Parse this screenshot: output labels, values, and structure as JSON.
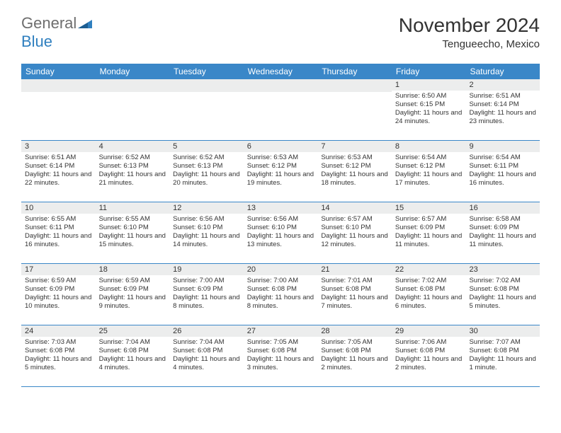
{
  "logo": {
    "text1": "General",
    "text2": "Blue"
  },
  "title": "November 2024",
  "location": "Tengueecho, Mexico",
  "colors": {
    "header_bg": "#3a87c8",
    "header_text": "#ffffff",
    "daynum_bg": "#eceded",
    "text": "#333333",
    "logo_gray": "#6e6e6e",
    "logo_blue": "#2f7fbf",
    "border": "#3a87c8"
  },
  "day_names": [
    "Sunday",
    "Monday",
    "Tuesday",
    "Wednesday",
    "Thursday",
    "Friday",
    "Saturday"
  ],
  "weeks": [
    [
      {
        "empty": true
      },
      {
        "empty": true
      },
      {
        "empty": true
      },
      {
        "empty": true
      },
      {
        "empty": true
      },
      {
        "num": "1",
        "sunrise": "Sunrise: 6:50 AM",
        "sunset": "Sunset: 6:15 PM",
        "daylight": "Daylight: 11 hours and 24 minutes."
      },
      {
        "num": "2",
        "sunrise": "Sunrise: 6:51 AM",
        "sunset": "Sunset: 6:14 PM",
        "daylight": "Daylight: 11 hours and 23 minutes."
      }
    ],
    [
      {
        "num": "3",
        "sunrise": "Sunrise: 6:51 AM",
        "sunset": "Sunset: 6:14 PM",
        "daylight": "Daylight: 11 hours and 22 minutes."
      },
      {
        "num": "4",
        "sunrise": "Sunrise: 6:52 AM",
        "sunset": "Sunset: 6:13 PM",
        "daylight": "Daylight: 11 hours and 21 minutes."
      },
      {
        "num": "5",
        "sunrise": "Sunrise: 6:52 AM",
        "sunset": "Sunset: 6:13 PM",
        "daylight": "Daylight: 11 hours and 20 minutes."
      },
      {
        "num": "6",
        "sunrise": "Sunrise: 6:53 AM",
        "sunset": "Sunset: 6:12 PM",
        "daylight": "Daylight: 11 hours and 19 minutes."
      },
      {
        "num": "7",
        "sunrise": "Sunrise: 6:53 AM",
        "sunset": "Sunset: 6:12 PM",
        "daylight": "Daylight: 11 hours and 18 minutes."
      },
      {
        "num": "8",
        "sunrise": "Sunrise: 6:54 AM",
        "sunset": "Sunset: 6:12 PM",
        "daylight": "Daylight: 11 hours and 17 minutes."
      },
      {
        "num": "9",
        "sunrise": "Sunrise: 6:54 AM",
        "sunset": "Sunset: 6:11 PM",
        "daylight": "Daylight: 11 hours and 16 minutes."
      }
    ],
    [
      {
        "num": "10",
        "sunrise": "Sunrise: 6:55 AM",
        "sunset": "Sunset: 6:11 PM",
        "daylight": "Daylight: 11 hours and 16 minutes."
      },
      {
        "num": "11",
        "sunrise": "Sunrise: 6:55 AM",
        "sunset": "Sunset: 6:10 PM",
        "daylight": "Daylight: 11 hours and 15 minutes."
      },
      {
        "num": "12",
        "sunrise": "Sunrise: 6:56 AM",
        "sunset": "Sunset: 6:10 PM",
        "daylight": "Daylight: 11 hours and 14 minutes."
      },
      {
        "num": "13",
        "sunrise": "Sunrise: 6:56 AM",
        "sunset": "Sunset: 6:10 PM",
        "daylight": "Daylight: 11 hours and 13 minutes."
      },
      {
        "num": "14",
        "sunrise": "Sunrise: 6:57 AM",
        "sunset": "Sunset: 6:10 PM",
        "daylight": "Daylight: 11 hours and 12 minutes."
      },
      {
        "num": "15",
        "sunrise": "Sunrise: 6:57 AM",
        "sunset": "Sunset: 6:09 PM",
        "daylight": "Daylight: 11 hours and 11 minutes."
      },
      {
        "num": "16",
        "sunrise": "Sunrise: 6:58 AM",
        "sunset": "Sunset: 6:09 PM",
        "daylight": "Daylight: 11 hours and 11 minutes."
      }
    ],
    [
      {
        "num": "17",
        "sunrise": "Sunrise: 6:59 AM",
        "sunset": "Sunset: 6:09 PM",
        "daylight": "Daylight: 11 hours and 10 minutes."
      },
      {
        "num": "18",
        "sunrise": "Sunrise: 6:59 AM",
        "sunset": "Sunset: 6:09 PM",
        "daylight": "Daylight: 11 hours and 9 minutes."
      },
      {
        "num": "19",
        "sunrise": "Sunrise: 7:00 AM",
        "sunset": "Sunset: 6:09 PM",
        "daylight": "Daylight: 11 hours and 8 minutes."
      },
      {
        "num": "20",
        "sunrise": "Sunrise: 7:00 AM",
        "sunset": "Sunset: 6:08 PM",
        "daylight": "Daylight: 11 hours and 8 minutes."
      },
      {
        "num": "21",
        "sunrise": "Sunrise: 7:01 AM",
        "sunset": "Sunset: 6:08 PM",
        "daylight": "Daylight: 11 hours and 7 minutes."
      },
      {
        "num": "22",
        "sunrise": "Sunrise: 7:02 AM",
        "sunset": "Sunset: 6:08 PM",
        "daylight": "Daylight: 11 hours and 6 minutes."
      },
      {
        "num": "23",
        "sunrise": "Sunrise: 7:02 AM",
        "sunset": "Sunset: 6:08 PM",
        "daylight": "Daylight: 11 hours and 5 minutes."
      }
    ],
    [
      {
        "num": "24",
        "sunrise": "Sunrise: 7:03 AM",
        "sunset": "Sunset: 6:08 PM",
        "daylight": "Daylight: 11 hours and 5 minutes."
      },
      {
        "num": "25",
        "sunrise": "Sunrise: 7:04 AM",
        "sunset": "Sunset: 6:08 PM",
        "daylight": "Daylight: 11 hours and 4 minutes."
      },
      {
        "num": "26",
        "sunrise": "Sunrise: 7:04 AM",
        "sunset": "Sunset: 6:08 PM",
        "daylight": "Daylight: 11 hours and 4 minutes."
      },
      {
        "num": "27",
        "sunrise": "Sunrise: 7:05 AM",
        "sunset": "Sunset: 6:08 PM",
        "daylight": "Daylight: 11 hours and 3 minutes."
      },
      {
        "num": "28",
        "sunrise": "Sunrise: 7:05 AM",
        "sunset": "Sunset: 6:08 PM",
        "daylight": "Daylight: 11 hours and 2 minutes."
      },
      {
        "num": "29",
        "sunrise": "Sunrise: 7:06 AM",
        "sunset": "Sunset: 6:08 PM",
        "daylight": "Daylight: 11 hours and 2 minutes."
      },
      {
        "num": "30",
        "sunrise": "Sunrise: 7:07 AM",
        "sunset": "Sunset: 6:08 PM",
        "daylight": "Daylight: 11 hours and 1 minute."
      }
    ]
  ]
}
